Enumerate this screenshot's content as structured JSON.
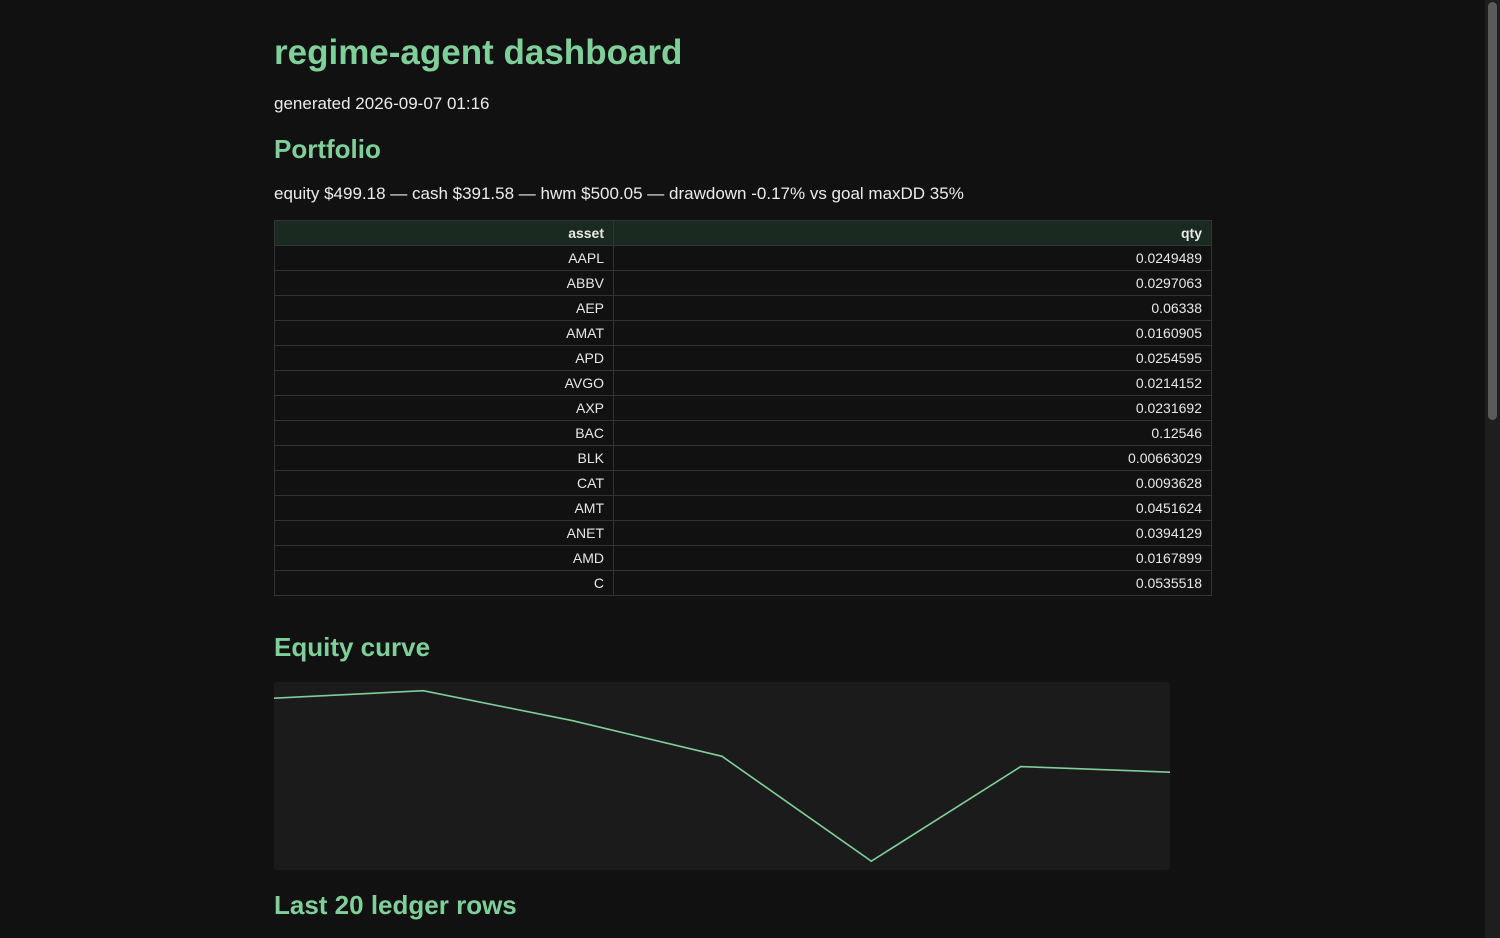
{
  "title": "regime-agent dashboard",
  "generated": "generated 2026-09-07 01:16",
  "portfolio": {
    "heading": "Portfolio",
    "summary": "equity $499.18 — cash $391.58 — hwm $500.05 — drawdown -0.17% vs goal maxDD 35%",
    "columns": [
      "asset",
      "qty"
    ],
    "rows": [
      {
        "asset": "AAPL",
        "qty": "0.0249489"
      },
      {
        "asset": "ABBV",
        "qty": "0.0297063"
      },
      {
        "asset": "AEP",
        "qty": "0.06338"
      },
      {
        "asset": "AMAT",
        "qty": "0.0160905"
      },
      {
        "asset": "APD",
        "qty": "0.0254595"
      },
      {
        "asset": "AVGO",
        "qty": "0.0214152"
      },
      {
        "asset": "AXP",
        "qty": "0.0231692"
      },
      {
        "asset": "BAC",
        "qty": "0.12546"
      },
      {
        "asset": "BLK",
        "qty": "0.00663029"
      },
      {
        "asset": "CAT",
        "qty": "0.0093628"
      },
      {
        "asset": "AMT",
        "qty": "0.0451624"
      },
      {
        "asset": "ANET",
        "qty": "0.0394129"
      },
      {
        "asset": "AMD",
        "qty": "0.0167899"
      },
      {
        "asset": "C",
        "qty": "0.0535518"
      }
    ]
  },
  "equity_curve": {
    "heading": "Equity curve",
    "line_color": "#7fcf9a"
  },
  "chart_data": {
    "type": "line",
    "title": "",
    "xlabel": "",
    "ylabel": "",
    "grid": false,
    "x": [
      1,
      2,
      3,
      4,
      5,
      6,
      7
    ],
    "series": [
      {
        "values": [
          499.97,
          500.05,
          499.73,
          499.35,
          498.23,
          499.24,
          499.18
        ]
      }
    ],
    "ylim": [
      498.2,
      500.1
    ]
  },
  "ledger": {
    "heading": "Last 20 ledger rows"
  }
}
